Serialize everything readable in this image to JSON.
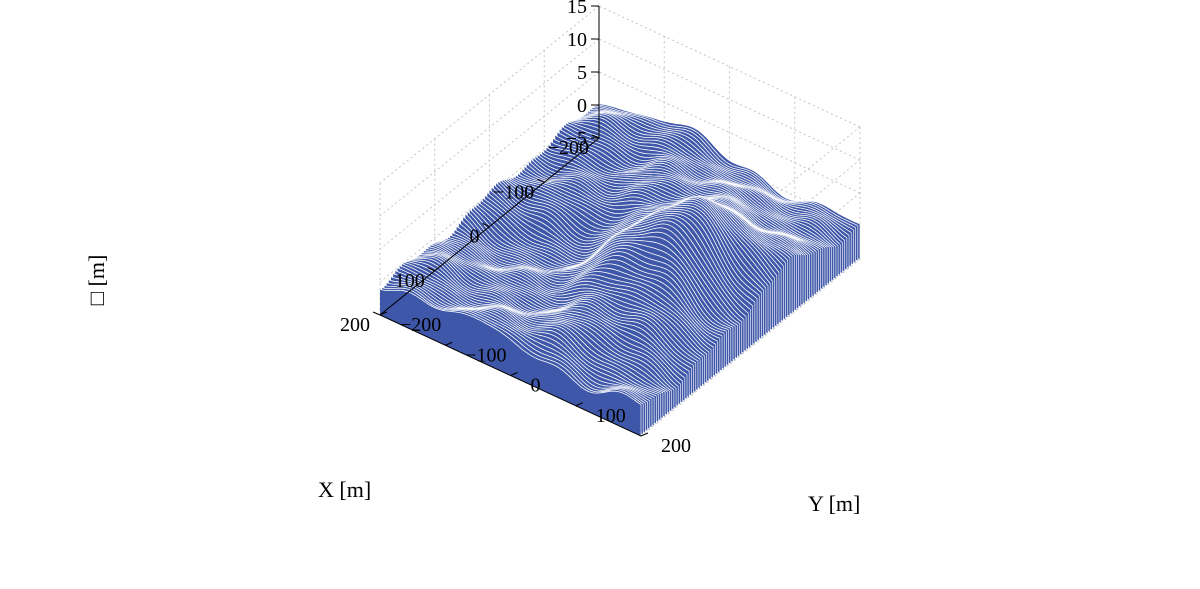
{
  "chart_data": {
    "type": "surface3d",
    "xlabel": "X [m]",
    "ylabel": "Y [m]",
    "zlabel": "□ [m]",
    "xlim": [
      -200,
      200
    ],
    "ylim": [
      -200,
      200
    ],
    "zlim": [
      -5,
      15
    ],
    "x_ticks": [
      -200,
      -100,
      0,
      100,
      200
    ],
    "y_ticks": [
      -200,
      -100,
      0,
      100,
      200
    ],
    "z_ticks": [
      -5,
      0,
      5,
      10,
      15
    ],
    "grid": true,
    "surface_color": "#3e57a8",
    "line_color": "#ffffff",
    "surface_base_z": -5,
    "features": [
      {
        "kind": "peak",
        "x": -20,
        "y": 90,
        "height": 9,
        "spread": 70
      },
      {
        "kind": "ridge",
        "x": -150,
        "y": -30,
        "height": 3,
        "spread": 60
      },
      {
        "kind": "basin",
        "x": 60,
        "y": -60,
        "height": -3,
        "spread": 60
      },
      {
        "kind": "basin",
        "x": 20,
        "y": 180,
        "height": -2,
        "spread": 50
      }
    ]
  }
}
